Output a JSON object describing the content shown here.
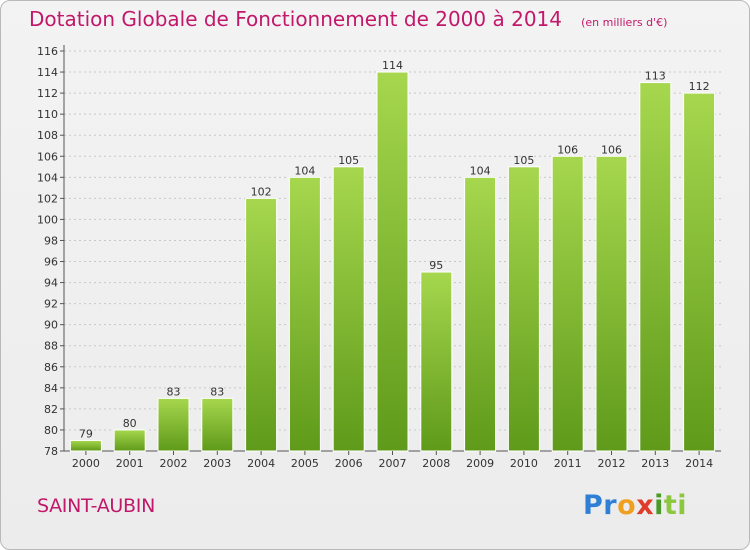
{
  "header": {
    "title": "Dotation Globale de Fonctionnement de 2000 à 2014",
    "unit": "(en milliers d'€)"
  },
  "footer": {
    "place": "SAINT-AUBIN",
    "brand_letters": [
      {
        "ch": "P",
        "color": "#2f7fd6"
      },
      {
        "ch": "r",
        "color": "#2f7fd6"
      },
      {
        "ch": "o",
        "color": "#f0a020"
      },
      {
        "ch": "x",
        "color": "#e03c2c"
      },
      {
        "ch": "i",
        "color": "#4a9a2a"
      },
      {
        "ch": "t",
        "color": "#8dc63f"
      },
      {
        "ch": "i",
        "color": "#8dc63f"
      }
    ]
  },
  "colors": {
    "bar_light": "#a6d74e",
    "bar_dark": "#5f9a1a",
    "title": "#c2186a",
    "grid": "#c8c8c8"
  },
  "chart_data": {
    "type": "bar",
    "categories": [
      "2000",
      "2001",
      "2002",
      "2003",
      "2004",
      "2005",
      "2006",
      "2007",
      "2008",
      "2009",
      "2010",
      "2011",
      "2012",
      "2013",
      "2014"
    ],
    "values": [
      79,
      80,
      83,
      83,
      102,
      104,
      105,
      114,
      95,
      104,
      105,
      106,
      106,
      113,
      112
    ],
    "value_labels": [
      "79",
      "80",
      "83",
      "83",
      "102",
      "104",
      "105",
      "114",
      "95",
      "104",
      "105",
      "106",
      "106",
      "113",
      "112"
    ],
    "yticks": [
      78,
      80,
      82,
      84,
      86,
      88,
      90,
      92,
      94,
      96,
      98,
      100,
      102,
      104,
      106,
      108,
      110,
      112,
      114,
      116
    ],
    "ylim": [
      78,
      116
    ],
    "grid": true
  }
}
